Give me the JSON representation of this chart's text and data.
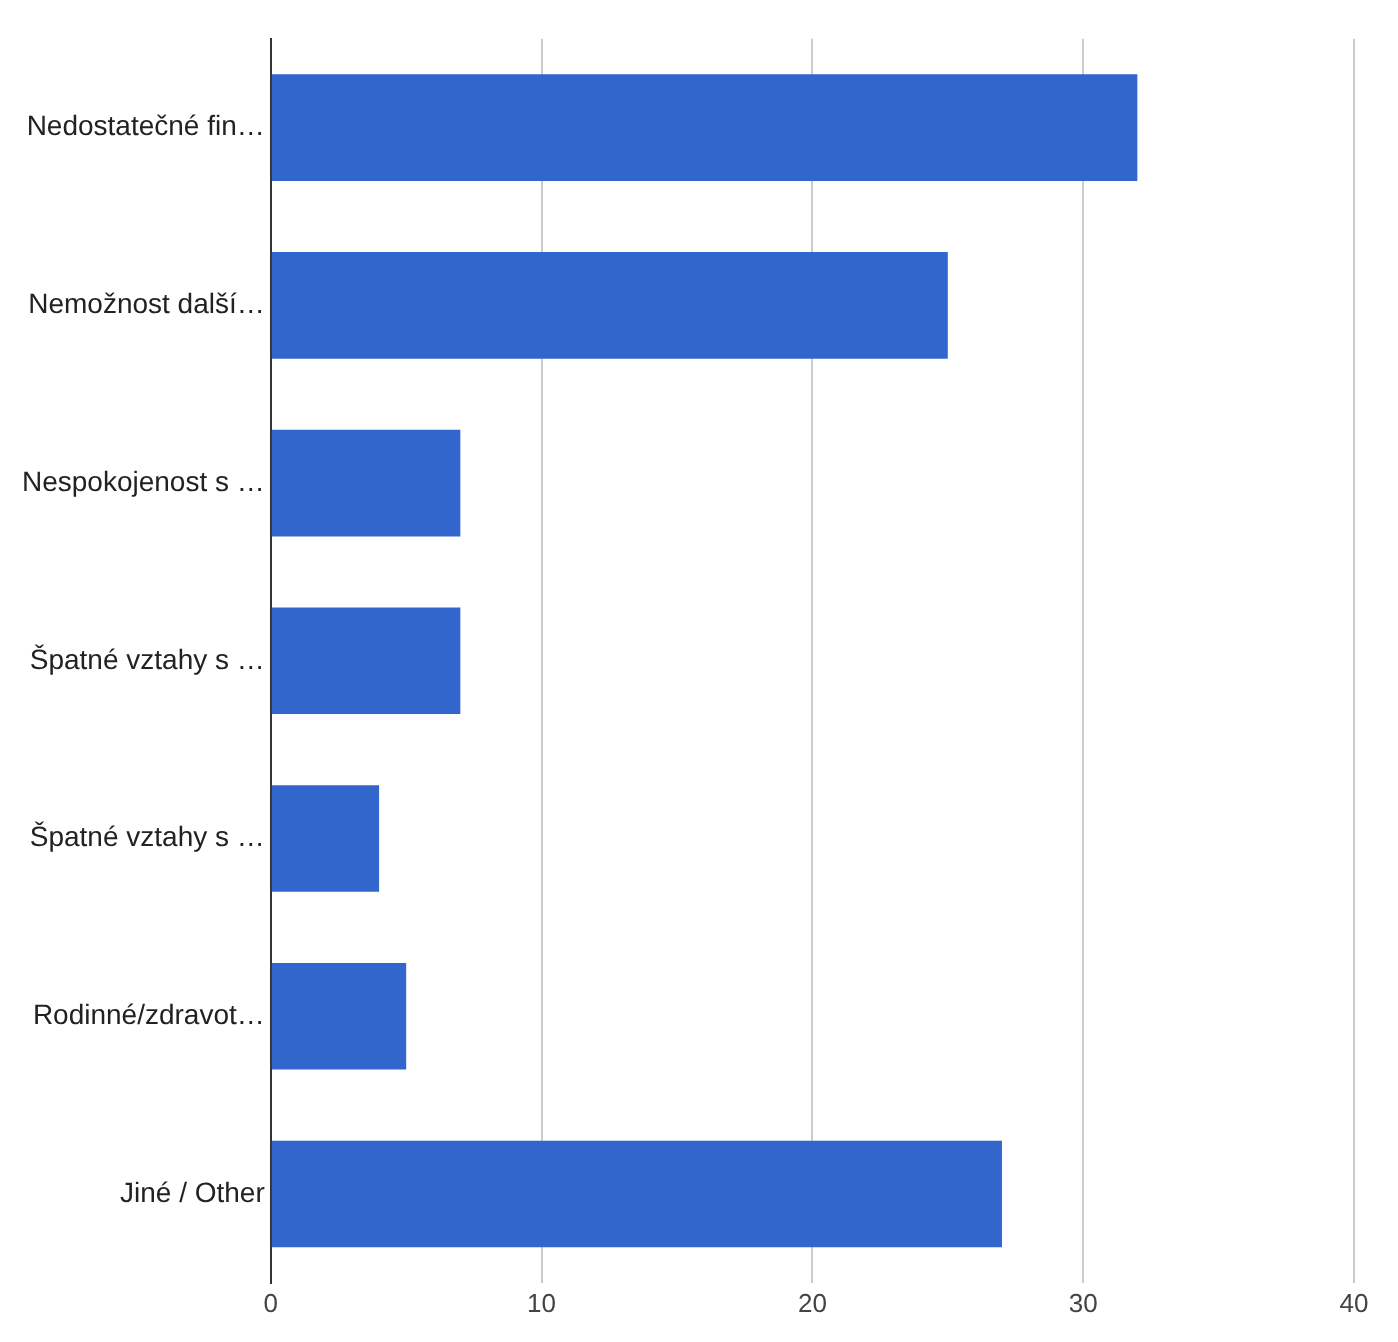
{
  "chart_data": {
    "type": "bar",
    "orientation": "horizontal",
    "categories": [
      "Nedostatečné fin…",
      "Nemožnost další…",
      "Nespokojenost s …",
      "Špatné vztahy s …",
      "Špatné vztahy s …",
      "Rodinné/zdravot…",
      "Jiné / Other"
    ],
    "values": [
      32,
      25,
      7,
      7,
      4,
      5,
      27
    ],
    "color": "#3366cc",
    "xlim": [
      0,
      40
    ],
    "xticks": [
      0,
      10,
      20,
      30,
      40
    ],
    "grid": "x",
    "legend": false
  }
}
